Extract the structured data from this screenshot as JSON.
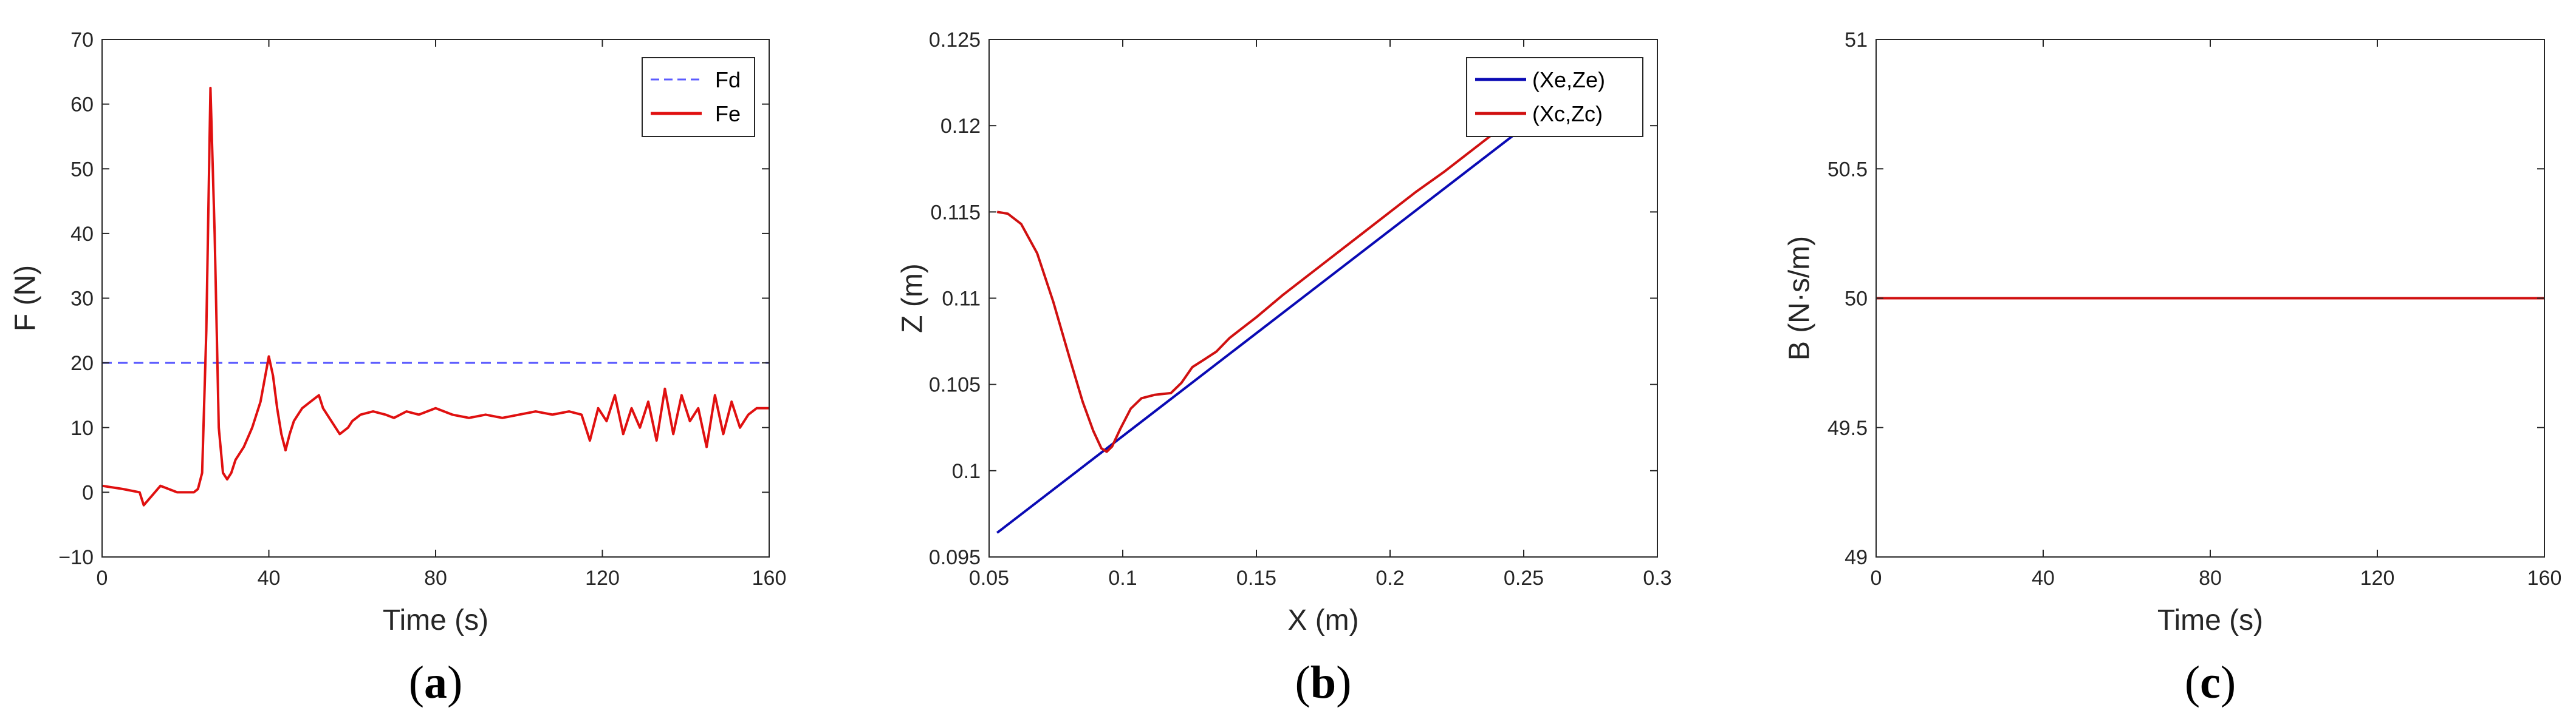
{
  "chart_data": [
    {
      "type": "line",
      "panel_label": "a",
      "xlabel": "Time (s)",
      "ylabel": "F (N)",
      "xlim": [
        0,
        160
      ],
      "ylim": [
        -10,
        70
      ],
      "xticks": [
        0,
        40,
        80,
        120,
        160
      ],
      "yticks": [
        -10,
        0,
        10,
        20,
        30,
        40,
        50,
        60,
        70
      ],
      "legend": "top-right",
      "series": [
        {
          "name": "Fd",
          "style": "dashed",
          "color": "#5b5bff",
          "x": [
            0,
            160
          ],
          "y": [
            20,
            20
          ]
        },
        {
          "name": "Fe",
          "style": "solid",
          "color": "#e01010",
          "x": [
            0,
            5,
            9,
            10,
            14,
            18,
            22,
            23,
            24,
            25,
            26,
            27,
            28,
            29,
            30,
            31,
            32,
            34,
            36,
            38,
            40,
            41,
            42,
            43,
            44,
            45,
            46,
            47,
            48,
            50,
            52,
            53,
            55,
            57,
            59,
            60,
            62,
            65,
            68,
            70,
            73,
            76,
            80,
            84,
            88,
            92,
            96,
            100,
            104,
            108,
            112,
            115,
            117,
            119,
            121,
            123,
            125,
            127,
            129,
            131,
            133,
            135,
            137,
            139,
            141,
            143,
            145,
            147,
            149,
            151,
            153,
            155,
            157,
            160
          ],
          "y": [
            1,
            0.5,
            0,
            -2,
            1,
            0,
            0,
            0.5,
            3,
            25,
            62.5,
            40,
            10,
            3,
            2,
            3,
            5,
            7,
            10,
            14,
            21,
            18,
            13,
            9,
            6.5,
            9,
            11,
            12,
            13,
            14,
            15,
            13,
            11,
            9,
            10,
            11,
            12,
            12.5,
            12,
            11.5,
            12.5,
            12,
            13,
            12,
            11.5,
            12,
            11.5,
            12,
            12.5,
            12,
            12.5,
            12,
            8,
            13,
            11,
            15,
            9,
            13,
            10,
            14,
            8,
            16,
            9,
            15,
            11,
            13,
            7,
            15,
            9,
            14,
            10,
            12,
            13,
            13
          ]
        }
      ]
    },
    {
      "type": "line",
      "panel_label": "b",
      "xlabel": "X (m)",
      "ylabel": "Z (m)",
      "xlim": [
        0.05,
        0.3
      ],
      "ylim": [
        0.095,
        0.125
      ],
      "xticks": [
        0.05,
        0.1,
        0.15,
        0.2,
        0.25,
        0.3
      ],
      "yticks": [
        0.095,
        0.1,
        0.105,
        0.11,
        0.115,
        0.12,
        0.125
      ],
      "legend": "top-right",
      "series": [
        {
          "name": "(Xe,Ze)",
          "style": "solid",
          "color": "#0a0ab4",
          "x": [
            0.053,
            0.255
          ],
          "y": [
            0.0964,
            0.1205
          ]
        },
        {
          "name": "(Xc,Zc)",
          "style": "solid",
          "color": "#d01010",
          "x": [
            0.053,
            0.057,
            0.062,
            0.068,
            0.074,
            0.08,
            0.085,
            0.089,
            0.092,
            0.094,
            0.096,
            0.099,
            0.103,
            0.107,
            0.112,
            0.118,
            0.122,
            0.126,
            0.13,
            0.135,
            0.14,
            0.145,
            0.15,
            0.16,
            0.17,
            0.18,
            0.19,
            0.2,
            0.21,
            0.22,
            0.23,
            0.24,
            0.25,
            0.255
          ],
          "y": [
            0.115,
            0.1149,
            0.1143,
            0.1126,
            0.1098,
            0.1066,
            0.104,
            0.1023,
            0.1013,
            0.1011,
            0.1014,
            0.1024,
            0.1036,
            0.1042,
            0.1044,
            0.1045,
            0.1051,
            0.106,
            0.1064,
            0.1069,
            0.1077,
            0.1083,
            0.1089,
            0.1102,
            0.1114,
            0.1126,
            0.1138,
            0.115,
            0.1162,
            0.1173,
            0.1185,
            0.1197,
            0.1208,
            0.1215
          ]
        }
      ]
    },
    {
      "type": "line",
      "panel_label": "c",
      "xlabel": "Time (s)",
      "ylabel": "B (N·s/m)",
      "xlim": [
        0,
        160
      ],
      "ylim": [
        49,
        51
      ],
      "xticks": [
        0,
        40,
        80,
        120,
        160
      ],
      "yticks": [
        49,
        49.5,
        50,
        50.5,
        51
      ],
      "series": [
        {
          "name": "",
          "style": "solid",
          "color": "#d01010",
          "x": [
            0,
            160
          ],
          "y": [
            50,
            50
          ]
        }
      ]
    }
  ]
}
